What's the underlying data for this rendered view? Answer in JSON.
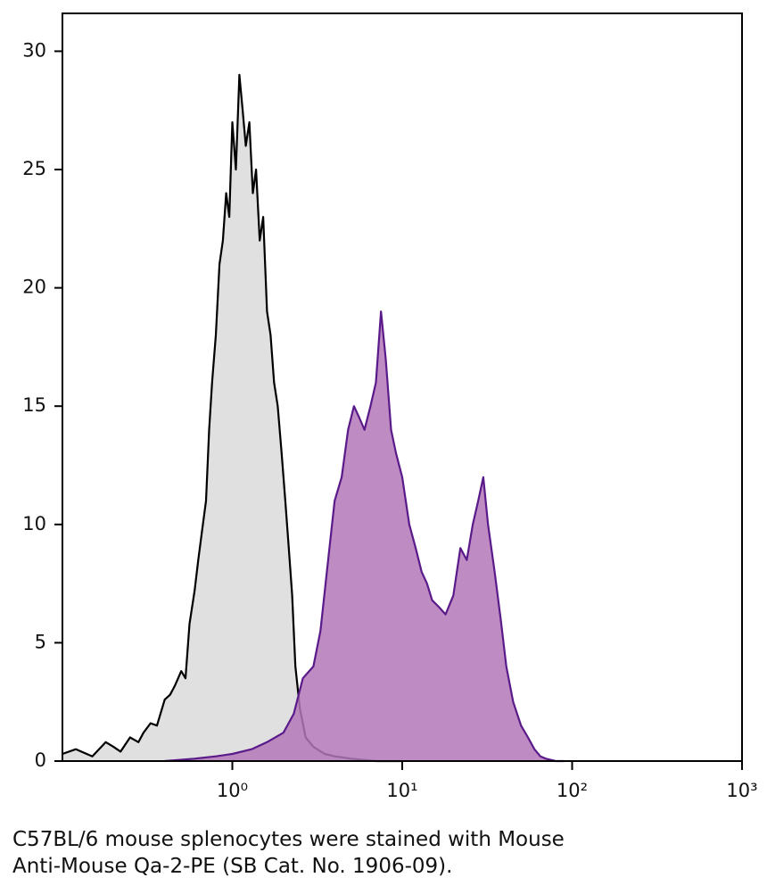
{
  "chart_data": {
    "type": "histogram-overlay",
    "xscale": "log",
    "xlim": [
      0.1,
      1000
    ],
    "ylim": [
      0,
      31.6
    ],
    "xticks": [
      {
        "value": 1,
        "label": "10⁰"
      },
      {
        "value": 10,
        "label": "10¹"
      },
      {
        "value": 100,
        "label": "10²"
      },
      {
        "value": 1000,
        "label": "10³"
      }
    ],
    "yticks": [
      0,
      5,
      10,
      15,
      20,
      25,
      30
    ],
    "series": [
      {
        "color": "#000000",
        "fill": "#e0e0e0",
        "x": [
          0.1,
          0.12,
          0.15,
          0.18,
          0.2,
          0.22,
          0.25,
          0.28,
          0.3,
          0.33,
          0.36,
          0.4,
          0.43,
          0.46,
          0.5,
          0.53,
          0.56,
          0.6,
          0.63,
          0.66,
          0.7,
          0.73,
          0.76,
          0.8,
          0.84,
          0.88,
          0.92,
          0.96,
          1.0,
          1.05,
          1.1,
          1.15,
          1.2,
          1.26,
          1.32,
          1.38,
          1.45,
          1.52,
          1.6,
          1.68,
          1.76,
          1.85,
          1.95,
          2.05,
          2.15,
          2.25,
          2.35,
          2.5,
          2.7,
          3.0,
          3.5,
          4,
          5,
          7,
          10
        ],
        "values": [
          0.3,
          0.5,
          0.2,
          0.8,
          0.6,
          0.4,
          1,
          0.8,
          1.2,
          1.6,
          1.5,
          2.6,
          2.8,
          3.2,
          3.8,
          3.5,
          5.8,
          7.2,
          8.5,
          9.6,
          11,
          14,
          16,
          18,
          21,
          22,
          24,
          23,
          27,
          25,
          29,
          27.5,
          26,
          27,
          24,
          25,
          22,
          23,
          19,
          18,
          16,
          15,
          13,
          11,
          9,
          7,
          4,
          2.2,
          1,
          0.6,
          0.3,
          0.2,
          0.1,
          0,
          0
        ]
      },
      {
        "color": "#5a1a8a",
        "fill": "#b377b8",
        "x": [
          0.4,
          0.6,
          0.8,
          1,
          1.3,
          1.6,
          2,
          2.3,
          2.6,
          3,
          3.3,
          3.6,
          4,
          4.4,
          4.8,
          5.2,
          5.6,
          6,
          6.5,
          7,
          7.5,
          8,
          8.6,
          9.2,
          10,
          11,
          12,
          13,
          14,
          15,
          16.5,
          18,
          20,
          22,
          24,
          26,
          28,
          30,
          32,
          35,
          38,
          41,
          45,
          50,
          55,
          60,
          65,
          70,
          80,
          90
        ],
        "values": [
          0,
          0.1,
          0.2,
          0.3,
          0.5,
          0.8,
          1.2,
          2,
          3.5,
          4,
          5.5,
          8,
          11,
          12,
          14,
          15,
          14.5,
          14,
          15,
          16,
          19,
          17,
          14,
          13,
          12,
          10,
          9,
          8,
          7.5,
          6.8,
          6.5,
          6.2,
          7,
          9,
          8.5,
          10,
          11,
          12,
          10,
          8,
          6,
          4,
          2.5,
          1.5,
          1,
          0.5,
          0.2,
          0.1,
          0,
          0
        ]
      }
    ],
    "caption": [
      "C57BL/6 mouse splenocytes were stained with Mouse",
      "Anti-Mouse Qa-2-PE (SB Cat. No. 1906-09)."
    ]
  }
}
